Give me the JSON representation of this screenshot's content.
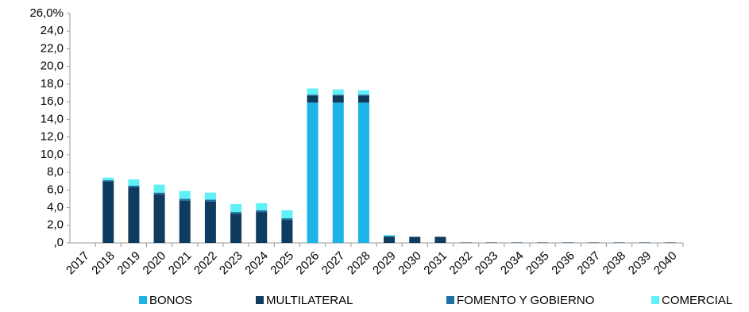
{
  "chart_data": {
    "type": "stacked_bar",
    "categories": [
      "2017",
      "2018",
      "2019",
      "2020",
      "2021",
      "2022",
      "2023",
      "2024",
      "2025",
      "2026",
      "2027",
      "2028",
      "2029",
      "2030",
      "2031",
      "2032",
      "2033",
      "2034",
      "2035",
      "2036",
      "2037",
      "2038",
      "2039",
      "2040"
    ],
    "series": [
      {
        "name": "BONOS",
        "color": "#1cb4e6",
        "values": [
          0,
          0,
          0,
          0,
          0,
          0,
          0,
          0,
          0,
          15.9,
          15.9,
          15.9,
          0,
          0,
          0,
          0,
          0,
          0,
          0,
          0,
          0,
          0,
          0,
          0
        ]
      },
      {
        "name": "MULTILATERAL",
        "color": "#0e3b5e",
        "values": [
          0,
          7.0,
          6.3,
          5.5,
          4.8,
          4.7,
          3.3,
          3.5,
          2.6,
          0.8,
          0.8,
          0.8,
          0.7,
          0.7,
          0.7,
          0.05,
          0.05,
          0.05,
          0.05,
          0.05,
          0.05,
          0.05,
          0.05,
          0.05
        ]
      },
      {
        "name": "FOMENTO Y GOBIERNO",
        "color": "#1b6fa3",
        "values": [
          0,
          0.1,
          0.2,
          0.2,
          0.2,
          0.2,
          0.2,
          0.2,
          0.2,
          0.1,
          0.1,
          0.1,
          0.1,
          0,
          0,
          0,
          0,
          0,
          0,
          0,
          0,
          0,
          0,
          0
        ]
      },
      {
        "name": "COMERCIAL",
        "color": "#5ff0f6",
        "values": [
          0,
          0.3,
          0.7,
          0.9,
          0.9,
          0.8,
          0.9,
          0.8,
          0.9,
          0.7,
          0.6,
          0.5,
          0.1,
          0,
          0,
          0,
          0,
          0,
          0,
          0,
          0,
          0,
          0,
          0
        ]
      }
    ],
    "ylim": [
      0,
      26
    ],
    "yticks": [
      {
        "value": 0,
        "label": ",0"
      },
      {
        "value": 2,
        "label": "2,0"
      },
      {
        "value": 4,
        "label": "4,0"
      },
      {
        "value": 6,
        "label": "6,0"
      },
      {
        "value": 8,
        "label": "8,0"
      },
      {
        "value": 10,
        "label": "10,0"
      },
      {
        "value": 12,
        "label": "12,0"
      },
      {
        "value": 14,
        "label": "14,0"
      },
      {
        "value": 16,
        "label": "16,0"
      },
      {
        "value": 18,
        "label": "18,0"
      },
      {
        "value": 20,
        "label": "20,0"
      },
      {
        "value": 22,
        "label": "22,0"
      },
      {
        "value": 24,
        "label": "24,0"
      },
      {
        "value": 26,
        "label": "26,0%"
      }
    ],
    "legend": "bottom"
  }
}
